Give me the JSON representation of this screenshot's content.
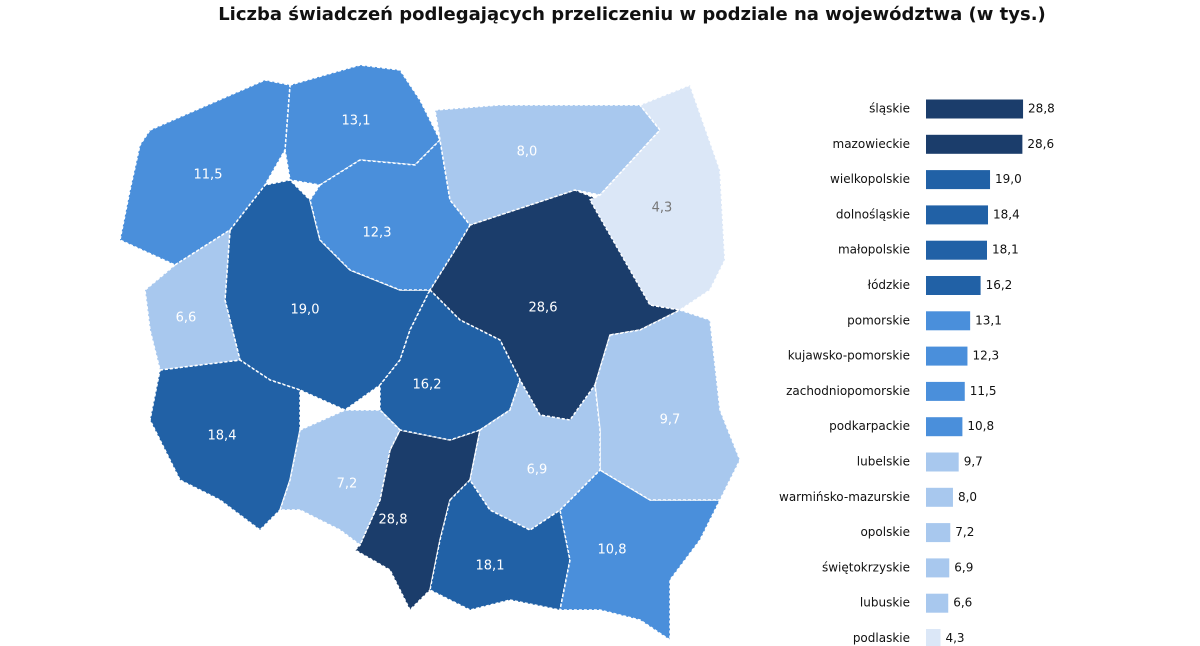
{
  "chart_data": [
    {
      "type": "map",
      "title": "Liczba świadczeń podlegających przeliczeniu w podziale na województwa (w tys.)",
      "values": [
        28.8,
        28.6,
        19.0,
        18.4,
        18.1,
        16.2,
        13.1,
        12.3,
        11.5,
        10.8,
        9.7,
        8.0,
        7.2,
        6.9,
        6.6,
        4.3
      ],
      "value_labels": [
        "28,8",
        "28,6",
        "19,0",
        "18,4",
        "18,1",
        "16,2",
        "13,1",
        "12,3",
        "11,5",
        "10,8",
        "9,7",
        "8,0",
        "7,2",
        "6,9",
        "6,6",
        "4,3"
      ],
      "colors": [
        "#1b3d6b",
        "#1b3d6b",
        "#2161a6",
        "#2161a6",
        "#2161a6",
        "#2161a6",
        "#4a8fdb",
        "#4a8fdb",
        "#4a8fdb",
        "#4a8fdb",
        "#a8c8ee",
        "#a8c8ee",
        "#a8c8ee",
        "#a8c8ee",
        "#a8c8ee",
        "#dbe7f7"
      ]
    },
    {
      "type": "bar",
      "categories": [
        "śląskie",
        "mazowieckie",
        "wielkopolskie",
        "dolnośląskie",
        "małopolskie",
        "łódzkie",
        "pomorskie",
        "kujawsko-pomorskie",
        "zachodniopomorskie",
        "podkarpackie",
        "lubelskie",
        "warmińsko-mazurskie",
        "opolskie",
        "świętokrzyskie",
        "lubuskie",
        "podlaskie"
      ],
      "values": [
        28.8,
        28.6,
        19.0,
        18.4,
        18.1,
        16.2,
        13.1,
        12.3,
        11.5,
        10.8,
        9.7,
        8.0,
        7.2,
        6.9,
        6.6,
        4.3
      ],
      "value_labels": [
        "28,8",
        "28,6",
        "19,0",
        "18,4",
        "18,1",
        "16,2",
        "13,1",
        "12,3",
        "11,5",
        "10,8",
        "9,7",
        "8,0",
        "7,2",
        "6,9",
        "6,6",
        "4,3"
      ],
      "colors": [
        "#1b3d6b",
        "#1b3d6b",
        "#2161a6",
        "#2161a6",
        "#2161a6",
        "#2161a6",
        "#4a8fdb",
        "#4a8fdb",
        "#4a8fdb",
        "#4a8fdb",
        "#a8c8ee",
        "#a8c8ee",
        "#a8c8ee",
        "#a8c8ee",
        "#a8c8ee",
        "#dbe7f7"
      ]
    }
  ]
}
